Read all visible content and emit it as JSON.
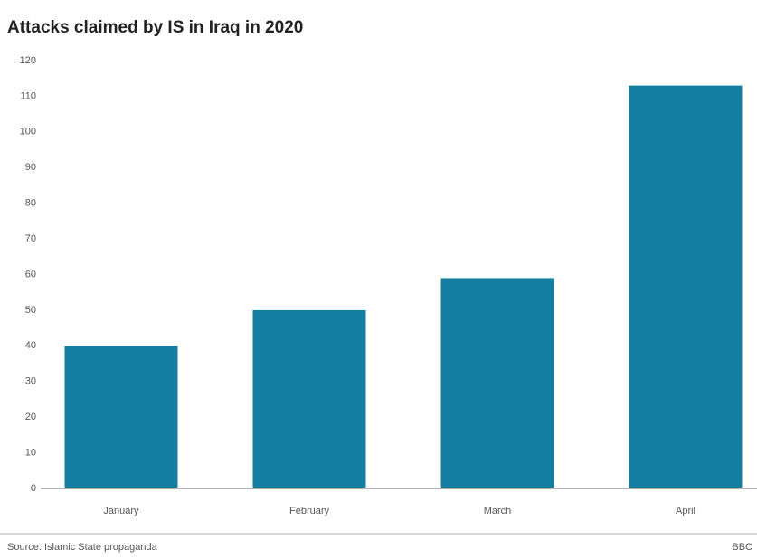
{
  "chart_data": {
    "type": "bar",
    "title": "Attacks claimed by IS in Iraq in 2020",
    "categories": [
      "January",
      "February",
      "March",
      "April"
    ],
    "values": [
      40,
      50,
      59,
      113
    ],
    "color": "#137ea0",
    "ylim": [
      0,
      120
    ],
    "yticks": [
      0,
      10,
      20,
      30,
      40,
      50,
      60,
      70,
      80,
      90,
      100,
      110,
      120
    ],
    "grid": false,
    "source": "Source: Islamic State propaganda",
    "credit": "BBC"
  }
}
